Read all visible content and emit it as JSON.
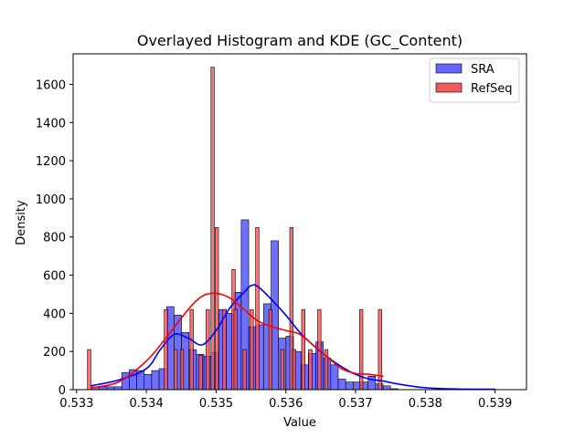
{
  "chart_data": {
    "type": "bar",
    "title": "Overlayed Histogram and KDE (GC_Content)",
    "xlabel": "Value",
    "ylabel": "Density",
    "xlim": [
      0.53295,
      0.53945
    ],
    "ylim": [
      0,
      1760
    ],
    "xticks": [
      "0.533",
      "0.534",
      "0.535",
      "0.536",
      "0.537",
      "0.538",
      "0.539"
    ],
    "xtick_values": [
      0.533,
      0.534,
      0.535,
      0.536,
      0.537,
      0.538,
      0.539
    ],
    "yticks": [
      "0",
      "200",
      "400",
      "600",
      "800",
      "1000",
      "1200",
      "1400",
      "1600"
    ],
    "ytick_values": [
      0,
      200,
      400,
      600,
      800,
      1000,
      1200,
      1400,
      1600
    ],
    "legend": {
      "position": "top-right"
    },
    "series": [
      {
        "name": "SRA",
        "color": "#0000ff",
        "bar_fill": "#6666ff",
        "bins_start": 0.53322,
        "bin_width": 0.000107,
        "values": [
          15,
          15,
          15,
          15,
          90,
          105,
          100,
          80,
          100,
          110,
          435,
          390,
          300,
          210,
          185,
          175,
          195,
          420,
          400,
          510,
          890,
          330,
          340,
          450,
          780,
          270,
          280,
          200,
          130,
          190,
          250,
          165,
          130,
          55,
          40,
          40,
          40,
          70,
          30,
          20,
          5
        ],
        "kde_x": [
          0.5332,
          0.5336,
          0.534,
          0.5342,
          0.5344,
          0.5346,
          0.5348,
          0.535,
          0.5352,
          0.5354,
          0.5355,
          0.5356,
          0.5358,
          0.536,
          0.5362,
          0.5364,
          0.5366,
          0.5368,
          0.537,
          0.5372,
          0.5374,
          0.5376,
          0.538,
          0.5385,
          0.539
        ],
        "kde_y": [
          20,
          50,
          110,
          210,
          290,
          270,
          235,
          310,
          430,
          510,
          545,
          540,
          470,
          390,
          300,
          230,
          170,
          120,
          80,
          55,
          45,
          30,
          10,
          3,
          2
        ]
      },
      {
        "name": "RefSeq",
        "color": "#ff0000",
        "bar_fill": "#f05a5a",
        "bin_centers": [
          0.53318,
          0.53428,
          0.53442,
          0.53451,
          0.53465,
          0.53478,
          0.53488,
          0.53495,
          0.53501,
          0.53512,
          0.53525,
          0.53528,
          0.53541,
          0.53551,
          0.53559,
          0.53578,
          0.53595,
          0.53608,
          0.53612,
          0.53625,
          0.53635,
          0.53648,
          0.53658,
          0.53708,
          0.53735
        ],
        "bin_width": 4.8e-05,
        "values": [
          210,
          420,
          210,
          210,
          420,
          180,
          420,
          1690,
          850,
          420,
          630,
          420,
          210,
          420,
          850,
          420,
          210,
          850,
          210,
          420,
          210,
          420,
          210,
          420,
          420
        ],
        "kde_x": [
          0.5332,
          0.5336,
          0.534,
          0.5343,
          0.5346,
          0.5348,
          0.535,
          0.5352,
          0.5354,
          0.5356,
          0.5358,
          0.536,
          0.5362,
          0.5364,
          0.5366,
          0.5368,
          0.537,
          0.5372,
          0.5374
        ],
        "kde_y": [
          10,
          40,
          150,
          280,
          420,
          490,
          505,
          480,
          420,
          360,
          330,
          310,
          290,
          230,
          170,
          110,
          85,
          80,
          70
        ]
      }
    ]
  }
}
